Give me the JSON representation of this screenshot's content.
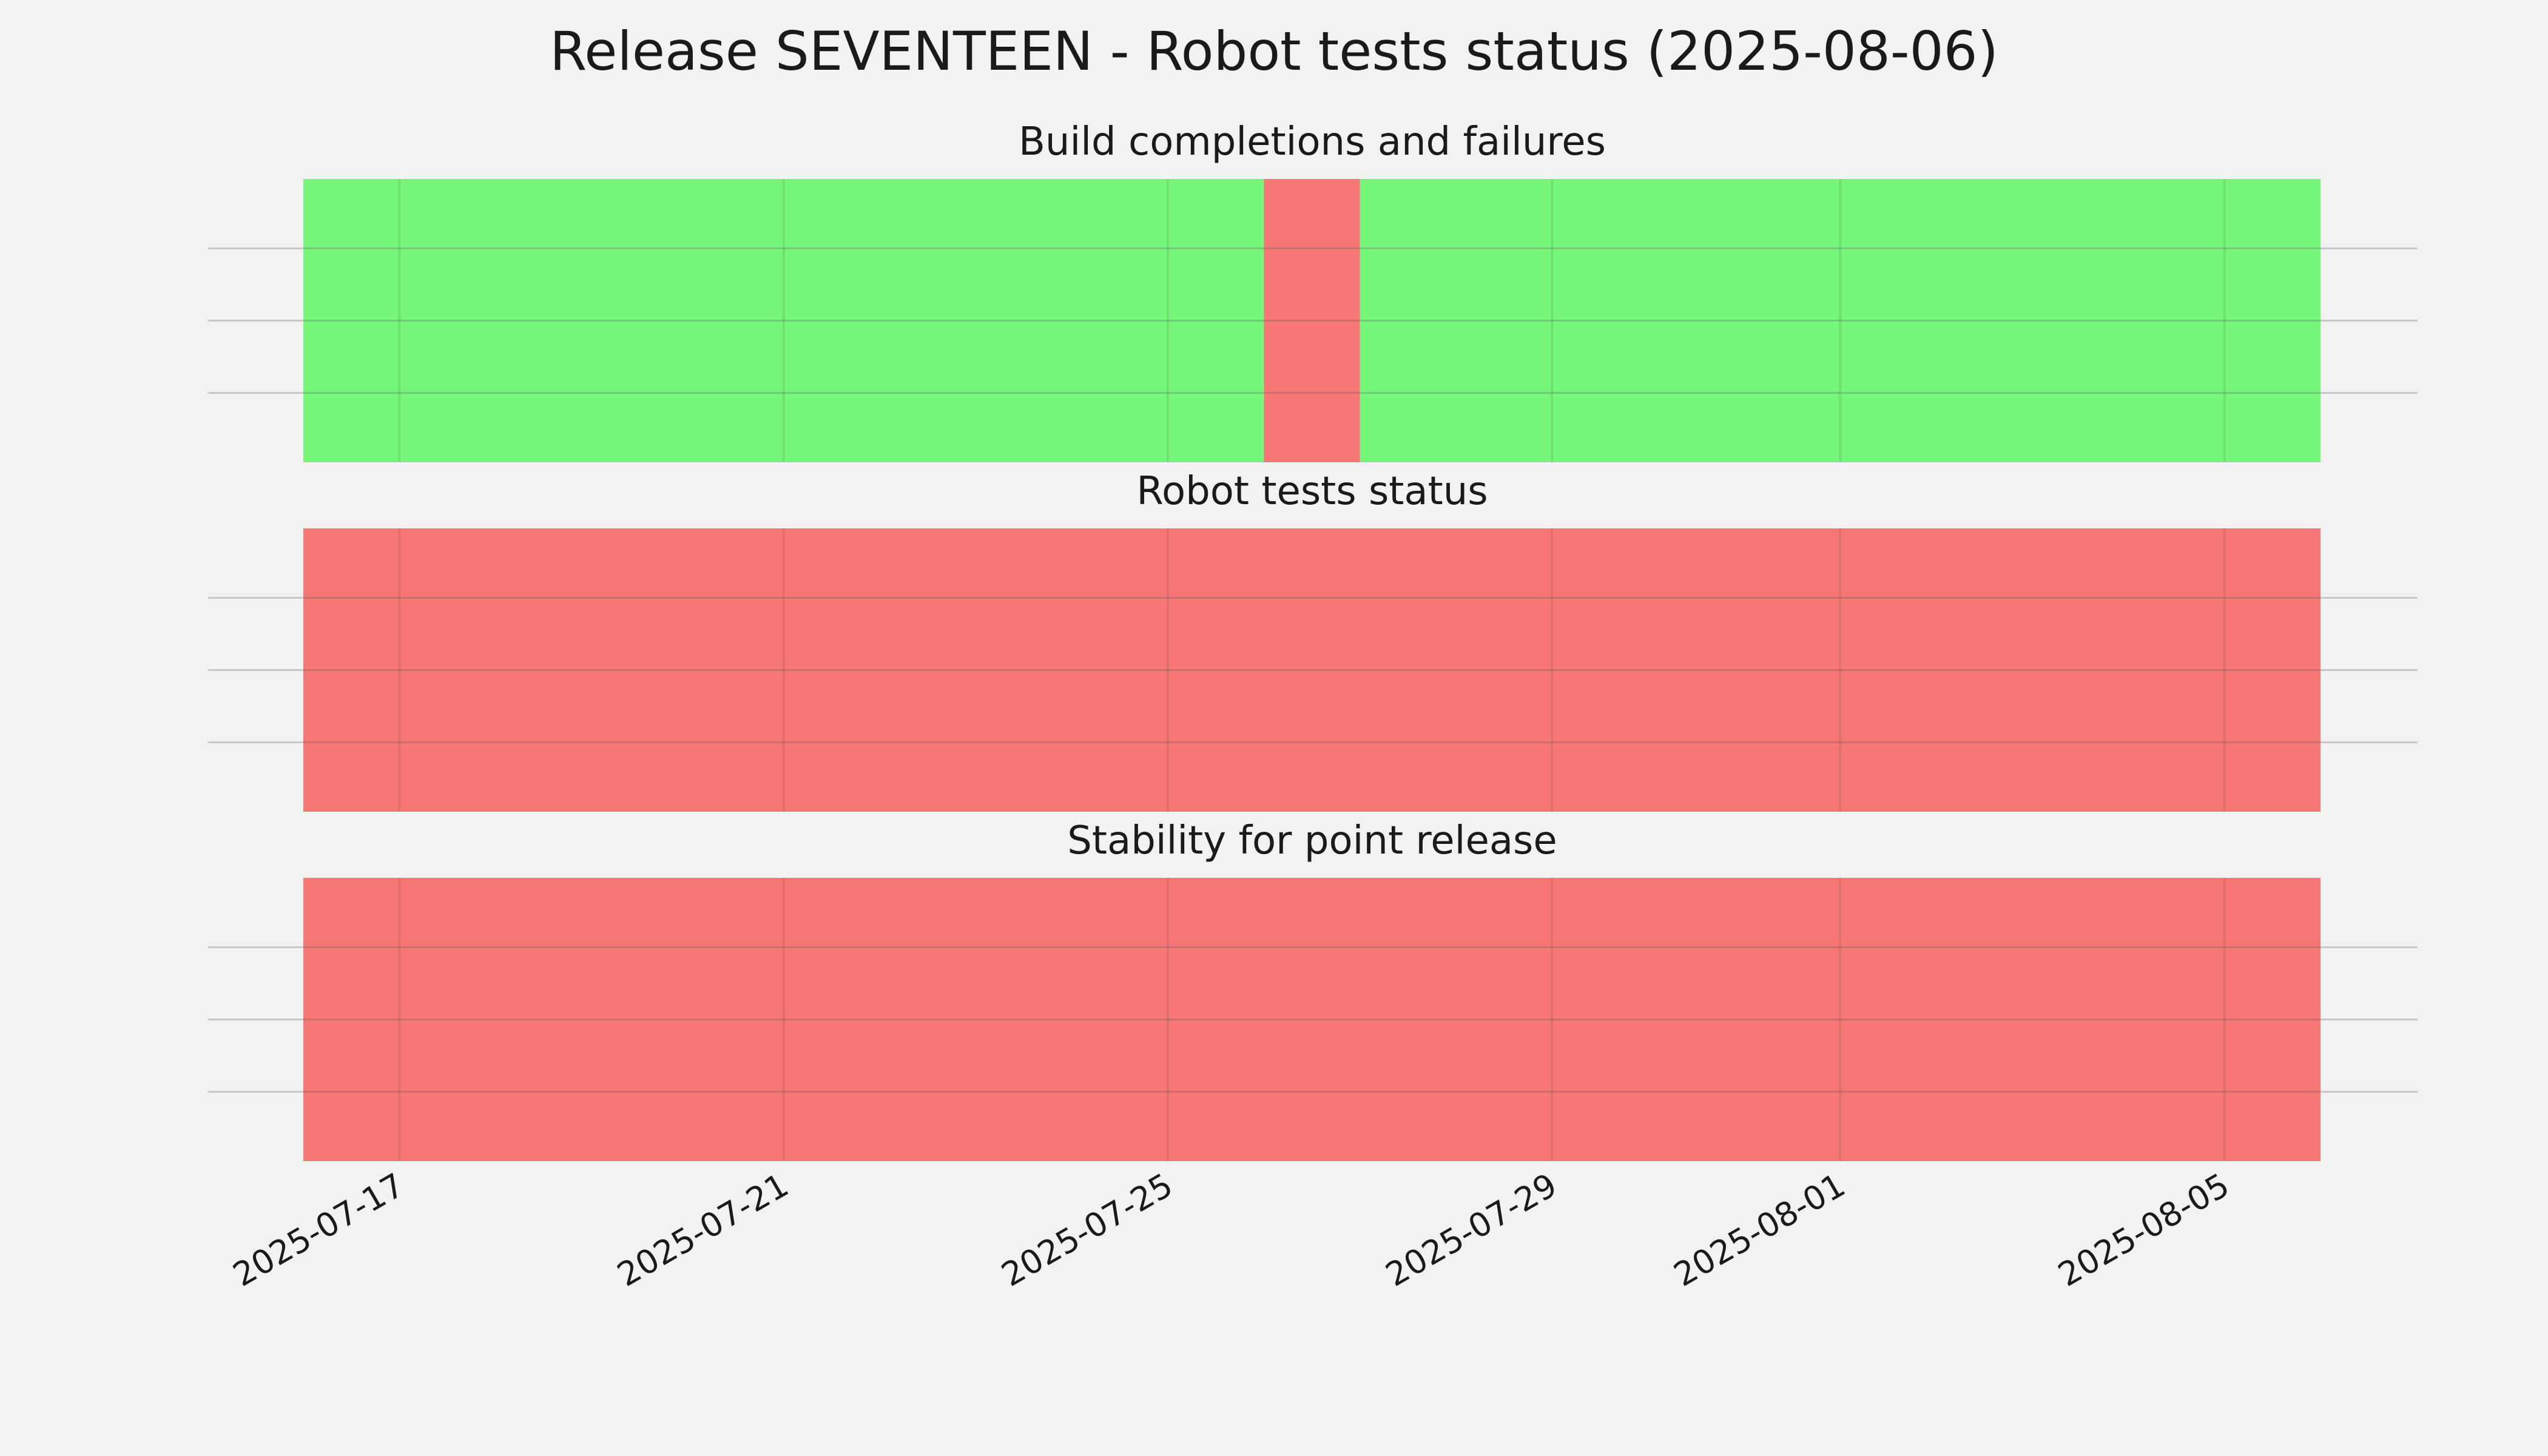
{
  "chart_data": {
    "type": "timeline",
    "title": "Release SEVENTEEN - Robot tests status (2025-08-06)",
    "x_range": [
      "2025-07-16",
      "2025-08-06"
    ],
    "x_ticks": [
      "2025-07-17",
      "2025-07-21",
      "2025-07-25",
      "2025-07-29",
      "2025-08-01",
      "2025-08-05"
    ],
    "grid": true,
    "colors": {
      "pass": "#77f77a",
      "fail": "#f77775",
      "background": "#f2f2f2"
    },
    "panels": [
      {
        "title": "Build completions and failures",
        "segments": [
          {
            "start": "2025-07-16",
            "end": "2025-07-26",
            "status": "pass"
          },
          {
            "start": "2025-07-26",
            "end": "2025-07-27",
            "status": "fail"
          },
          {
            "start": "2025-07-27",
            "end": "2025-08-06",
            "status": "pass"
          }
        ]
      },
      {
        "title": "Robot tests status",
        "segments": [
          {
            "start": "2025-07-16",
            "end": "2025-08-06",
            "status": "fail"
          }
        ]
      },
      {
        "title": "Stability for point release",
        "segments": [
          {
            "start": "2025-07-16",
            "end": "2025-08-06",
            "status": "fail"
          }
        ]
      }
    ]
  }
}
